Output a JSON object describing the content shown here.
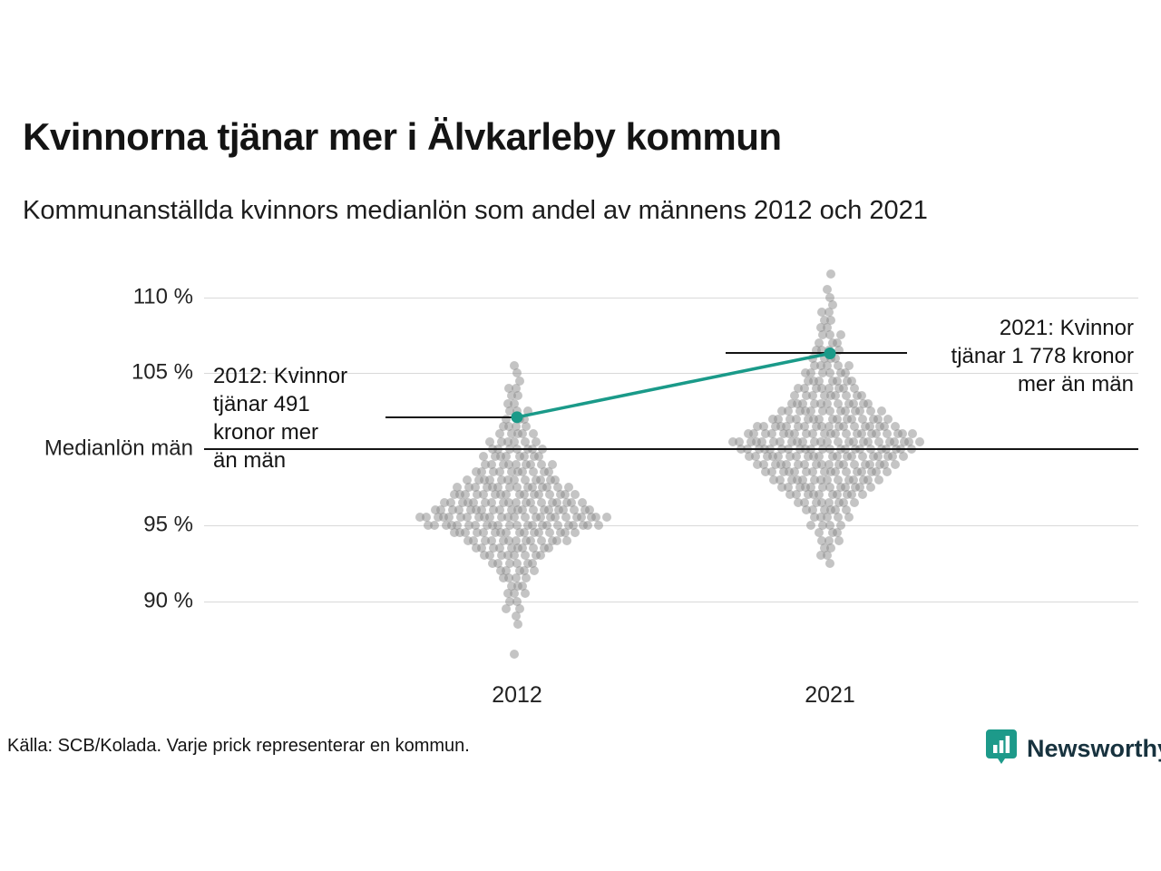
{
  "title": "Kvinnorna tjänar mer i Älvkarleby kommun",
  "subtitle": "Kommunanställda kvinnors medianlön som andel av männens 2012 och 2021",
  "source": "Källa: SCB/Kolada. Varje prick representerar en kommun.",
  "logo": {
    "label": "Newsworthy",
    "icon": "newsworthy-bar-chart-badge",
    "icon_color": "#1d9a8a"
  },
  "annotations": {
    "left": "2012: Kvinnor\ntjänar 491\nkronor mer\nän män",
    "right": "2021: Kvinnor\ntjänar 1 778 kronor\nmer än män"
  },
  "chart_data": {
    "type": "scatter",
    "variant": "beeswarm",
    "title": "Kommunanställda kvinnors medianlön som andel av männens 2012 och 2021",
    "categories": [
      "2012",
      "2021"
    ],
    "unit": "%",
    "ylim": [
      86,
      112
    ],
    "grid": true,
    "y_axis": {
      "ticks": [
        {
          "label": "110 %",
          "value": 110
        },
        {
          "label": "105 %",
          "value": 105
        },
        {
          "label": "Medianlön män",
          "value": 100
        },
        {
          "label": "95 %",
          "value": 95
        },
        {
          "label": "90 %",
          "value": 90
        }
      ]
    },
    "reference_line": {
      "label": "Medianlön män",
      "value": 100
    },
    "highlight": {
      "name": "Älvkarleby kommun",
      "color": "#1a9a89",
      "values": [
        102.1,
        106.3
      ]
    },
    "dot_color": "#8a8a8a",
    "swarms": [
      {
        "category": "2012",
        "bins": [
          [
            105.5,
            1
          ],
          [
            105,
            1
          ],
          [
            104.5,
            1
          ],
          [
            104,
            2
          ],
          [
            103.5,
            2
          ],
          [
            103,
            2
          ],
          [
            102.5,
            3
          ],
          [
            102,
            3
          ],
          [
            101.5,
            4
          ],
          [
            101,
            5
          ],
          [
            100.5,
            6
          ],
          [
            100,
            7
          ],
          [
            99.5,
            8
          ],
          [
            99,
            9
          ],
          [
            98.5,
            10
          ],
          [
            98,
            12
          ],
          [
            97.5,
            14
          ],
          [
            97,
            16
          ],
          [
            96.5,
            18
          ],
          [
            96,
            20
          ],
          [
            95.5,
            24
          ],
          [
            95,
            22
          ],
          [
            94.5,
            16
          ],
          [
            94,
            13
          ],
          [
            93.5,
            10
          ],
          [
            93,
            8
          ],
          [
            92.5,
            6
          ],
          [
            92,
            5
          ],
          [
            91.5,
            4
          ],
          [
            91,
            3
          ],
          [
            90.5,
            3
          ],
          [
            90,
            2
          ],
          [
            89.5,
            2
          ],
          [
            89,
            1
          ],
          [
            88.5,
            1
          ],
          [
            86.5,
            1
          ]
        ]
      },
      {
        "category": "2021",
        "bins": [
          [
            111.5,
            1
          ],
          [
            110.5,
            1
          ],
          [
            110,
            1
          ],
          [
            109.5,
            1
          ],
          [
            109,
            2
          ],
          [
            108.5,
            2
          ],
          [
            108,
            2
          ],
          [
            107.5,
            3
          ],
          [
            107,
            3
          ],
          [
            106.5,
            4
          ],
          [
            106,
            4
          ],
          [
            105.5,
            5
          ],
          [
            105,
            6
          ],
          [
            104.5,
            7
          ],
          [
            104,
            8
          ],
          [
            103.5,
            9
          ],
          [
            103,
            11
          ],
          [
            102.5,
            13
          ],
          [
            102,
            15
          ],
          [
            101.5,
            18
          ],
          [
            101,
            21
          ],
          [
            100.5,
            24
          ],
          [
            100,
            22
          ],
          [
            99.5,
            20
          ],
          [
            99,
            18
          ],
          [
            98.5,
            16
          ],
          [
            98,
            14
          ],
          [
            97.5,
            12
          ],
          [
            97,
            10
          ],
          [
            96.5,
            8
          ],
          [
            96,
            6
          ],
          [
            95.5,
            5
          ],
          [
            95,
            4
          ],
          [
            94.5,
            3
          ],
          [
            94,
            3
          ],
          [
            93.5,
            2
          ],
          [
            93,
            2
          ],
          [
            92.5,
            1
          ]
        ]
      }
    ]
  }
}
